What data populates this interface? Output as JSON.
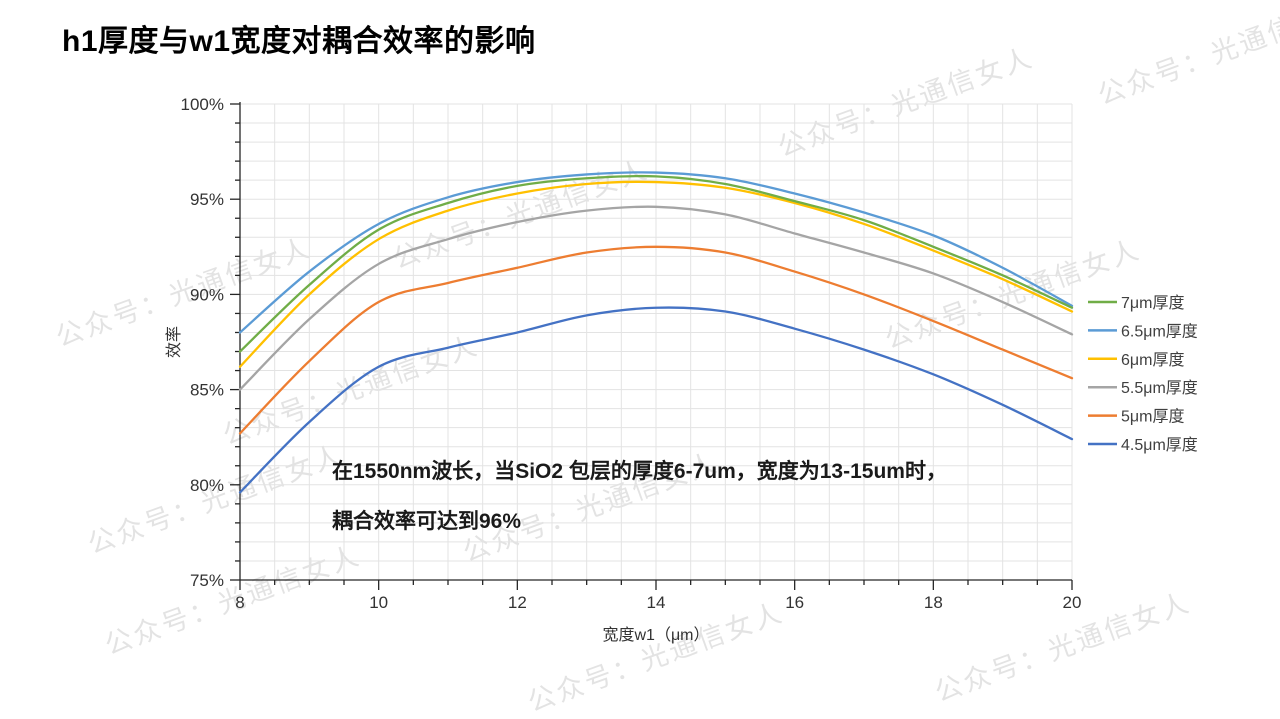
{
  "title": "h1厚度与w1宽度对耦合效率的影响",
  "watermark": {
    "text": "公众号：光通信女人"
  },
  "chart_data": {
    "type": "line",
    "title": "",
    "xlabel": "宽度w1（μm）",
    "ylabel": "效率",
    "xlim": [
      8,
      20
    ],
    "ylim": [
      75,
      100
    ],
    "x_major_ticks": [
      8,
      10,
      12,
      14,
      16,
      18,
      20
    ],
    "x_minor_step": 0.5,
    "y_major_ticks": [
      75,
      80,
      85,
      90,
      95,
      100
    ],
    "y_tick_labels": [
      "75%",
      "80%",
      "85%",
      "90%",
      "95%",
      "100%"
    ],
    "y_minor_step": 1,
    "grid": "minor gridlines on (0.5 um x 1%)",
    "legend_position": "right",
    "x": [
      8,
      9,
      10,
      11,
      12,
      13,
      14,
      15,
      16,
      17,
      18,
      19,
      20
    ],
    "series": [
      {
        "name": "7μm厚度",
        "color": "#70AD47",
        "values": [
          87.0,
          90.5,
          93.4,
          94.8,
          95.7,
          96.1,
          96.2,
          95.8,
          94.9,
          93.9,
          92.5,
          91.0,
          89.3
        ]
      },
      {
        "name": "6.5μm厚度",
        "color": "#5B9BD5",
        "values": [
          88.0,
          91.2,
          93.7,
          95.1,
          95.9,
          96.3,
          96.4,
          96.1,
          95.3,
          94.3,
          93.1,
          91.4,
          89.4
        ]
      },
      {
        "name": "6μm厚度",
        "color": "#FFC000",
        "values": [
          86.2,
          90.0,
          92.9,
          94.4,
          95.3,
          95.8,
          95.9,
          95.6,
          94.8,
          93.7,
          92.3,
          90.8,
          89.1
        ]
      },
      {
        "name": "5.5μm厚度",
        "color": "#A5A5A5",
        "values": [
          85.0,
          88.7,
          91.6,
          92.9,
          93.8,
          94.4,
          94.6,
          94.2,
          93.2,
          92.2,
          91.1,
          89.6,
          87.9
        ]
      },
      {
        "name": "5μm厚度",
        "color": "#ED7D31",
        "values": [
          82.7,
          86.5,
          89.6,
          90.6,
          91.4,
          92.2,
          92.5,
          92.2,
          91.2,
          90.0,
          88.6,
          87.1,
          85.6
        ]
      },
      {
        "name": "4.5μm厚度",
        "color": "#4472C4",
        "values": [
          79.6,
          83.3,
          86.2,
          87.2,
          88.0,
          88.9,
          89.3,
          89.1,
          88.2,
          87.1,
          85.8,
          84.2,
          82.4
        ]
      }
    ],
    "annotation": {
      "line1": "在1550nm波长，当SiO2 包层的厚度6-7um，宽度为13-15um时，",
      "line2": "耦合效率可达到96%"
    },
    "colors": {
      "axis": "#262626",
      "grid": "#e3e3e3",
      "tick_label": "#333333",
      "legend_label": "#404040"
    }
  }
}
